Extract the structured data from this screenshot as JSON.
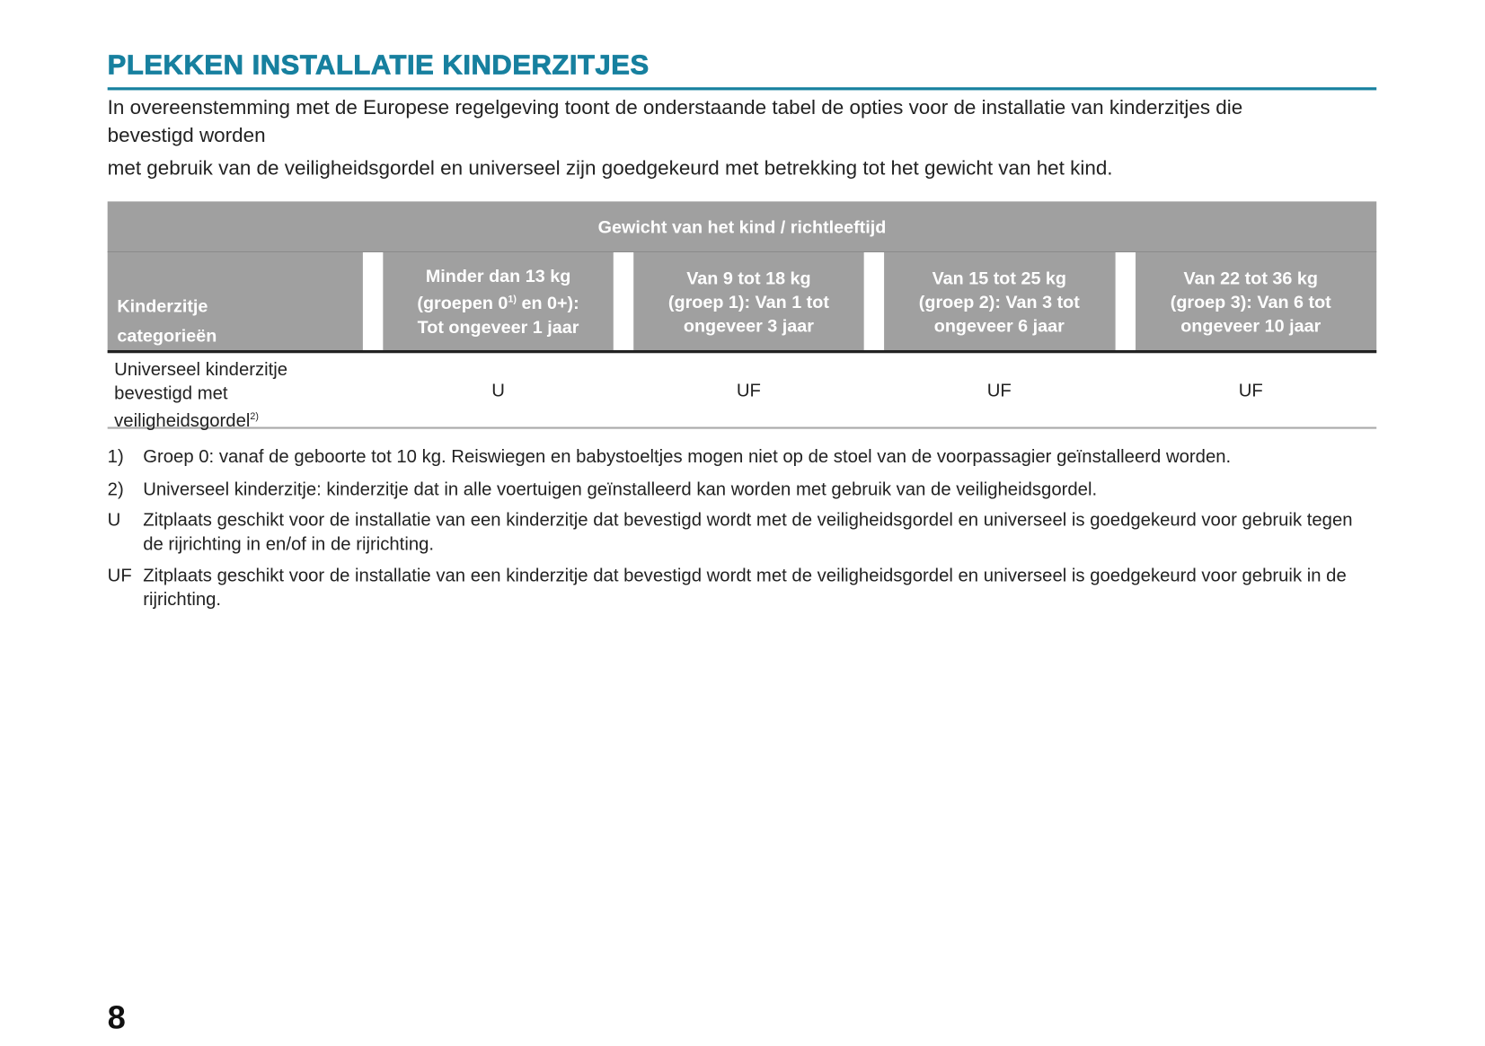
{
  "title": "PLEKKEN INSTALLATIE KINDERZITJES",
  "intro": [
    "In overeenstemming met de Europese regelgeving toont de onderstaande tabel de opties voor de installatie van kinderzitjes die",
    "bevestigd worden",
    "met gebruik van de veiligheidsgordel en universeel zijn goedgekeurd met betrekking tot het gewicht van het kind."
  ],
  "table": {
    "header_top": "Gewicht van het kind / richtleeftijd",
    "category_header": [
      "Kinderzitje",
      "categorieën"
    ],
    "columns": [
      {
        "l1": "Minder dan 13 kg",
        "l2a": "(groepen 0",
        "sup": "1)",
        "l2b": " en 0+):",
        "l3": "Tot ongeveer 1 jaar"
      },
      {
        "l1": "Van 9 tot 18 kg",
        "l2a": "(groep 1): Van 1 tot",
        "l3": "ongeveer 3 jaar"
      },
      {
        "l1": "Van 15 tot 25 kg",
        "l2a": "(groep 2): Van 3 tot",
        "l3": "ongeveer 6 jaar"
      },
      {
        "l1": "Van 22 tot 36 kg",
        "l2a": "(groep 3): Van 6 tot",
        "l3": "ongeveer 10 jaar"
      }
    ],
    "rows": [
      {
        "label": [
          "Universeel kinderzitje",
          "bevestigd met",
          "veiligheidsgordel"
        ],
        "label_sup": "2)",
        "values": [
          "U",
          "UF",
          "UF",
          "UF"
        ]
      }
    ]
  },
  "footnotes": [
    {
      "key": "1)",
      "text": "Groep 0: vanaf de geboorte tot 10 kg. Reiswiegen en babystoeltjes mogen niet op de stoel van de voorpassagier geïnstalleerd worden."
    },
    {
      "key": "2)",
      "text": "Universeel kinderzitje: kinderzitje dat in alle voertuigen geïnstalleerd kan worden met gebruik van de veiligheidsgordel."
    },
    {
      "key": "U",
      "text": "Zitplaats geschikt voor de installatie van een kinderzitje dat bevestigd wordt met de veiligheidsgordel en universeel is goedgekeurd voor gebruik tegen de rijrichting in en/of in de rijrichting."
    },
    {
      "key": "UF",
      "text": "Zitplaats geschikt voor de installatie van een kinderzitje dat bevestigd wordt met de veiligheidsgordel en universeel is goedgekeurd voor gebruik in de rijrichting."
    }
  ],
  "page_number": "8",
  "colors": {
    "accent": "#17809f",
    "header_bg": "#a0a0a0"
  }
}
